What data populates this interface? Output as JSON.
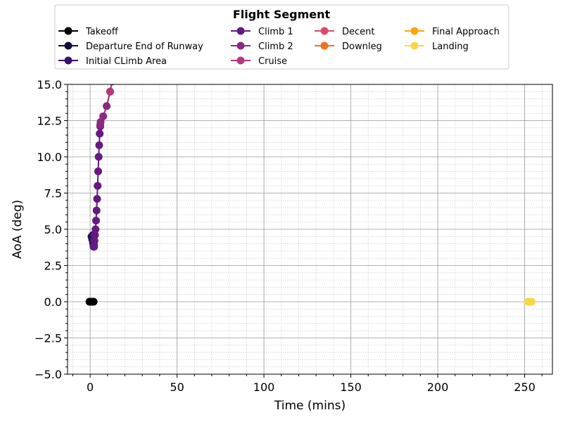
{
  "chart_data": {
    "type": "line",
    "xlabel": "Time (mins)",
    "ylabel": "AoA (deg)",
    "xlim": [
      -13,
      266
    ],
    "ylim": [
      -5,
      15
    ],
    "x_ticks": [
      "0",
      "50",
      "100",
      "150",
      "200",
      "250"
    ],
    "y_ticks": [
      "−5.0",
      "−2.5",
      "0.0",
      "2.5",
      "5.0",
      "7.5",
      "10.0",
      "12.5",
      "15.0"
    ],
    "grid": "major and minor",
    "legend": {
      "title": "Flight Segment",
      "placement": "top-center",
      "columns": 4
    },
    "series": [
      {
        "name": "Takeoff",
        "color": "#000004",
        "x": [
          -0.4,
          -0.1,
          0.2,
          0.5,
          0.8,
          1.1,
          1.4,
          1.7,
          2.0
        ],
        "y": [
          0,
          0,
          0,
          0,
          0,
          0,
          0,
          0,
          0
        ]
      },
      {
        "name": "Departure End of Runway",
        "color": "#140e36",
        "x": [
          0.8,
          1.2,
          1.6
        ],
        "y": [
          4.5,
          4.3,
          4.1
        ]
      },
      {
        "name": "Initial CLimb Area",
        "color": "#3b0f70",
        "x": [
          1.5,
          1.6,
          1.7,
          1.8,
          1.9,
          2.0,
          2.1,
          2.2
        ],
        "y": [
          4.6,
          4.4,
          4.2,
          4.0,
          3.9,
          3.8,
          3.8,
          3.9
        ]
      },
      {
        "name": "Climb 1",
        "color": "#641a80",
        "x": [
          2.3,
          2.5,
          2.8,
          3.1,
          3.4,
          3.7,
          4.0,
          4.3,
          4.6,
          4.9,
          5.2,
          5.5,
          5.8
        ],
        "y": [
          3.8,
          4.2,
          4.6,
          5.0,
          5.6,
          6.3,
          7.1,
          8.0,
          9.0,
          10.0,
          10.8,
          11.6,
          12.1
        ]
      },
      {
        "name": "Climb 2",
        "color": "#8c2981",
        "x": [
          5.8,
          6.0,
          7.5,
          9.5,
          11.5,
          12.6
        ],
        "y": [
          12.2,
          12.4,
          12.8,
          13.5,
          14.5,
          15.2
        ]
      },
      {
        "name": "Cruise",
        "color": "#b73779",
        "x": [
          11.5,
          12.7
        ],
        "y": [
          14.5,
          15.2
        ]
      },
      {
        "name": "Decent",
        "color": "#de4968",
        "x": [],
        "y": []
      },
      {
        "name": "Downleg",
        "color": "#f1711f",
        "x": [],
        "y": []
      },
      {
        "name": "Final Approach",
        "color": "#fca50a",
        "x": [],
        "y": []
      },
      {
        "name": "Landing",
        "color": "#f6d746",
        "x": [
          252.0,
          253.0,
          254.0
        ],
        "y": [
          0,
          0,
          0
        ]
      }
    ]
  }
}
